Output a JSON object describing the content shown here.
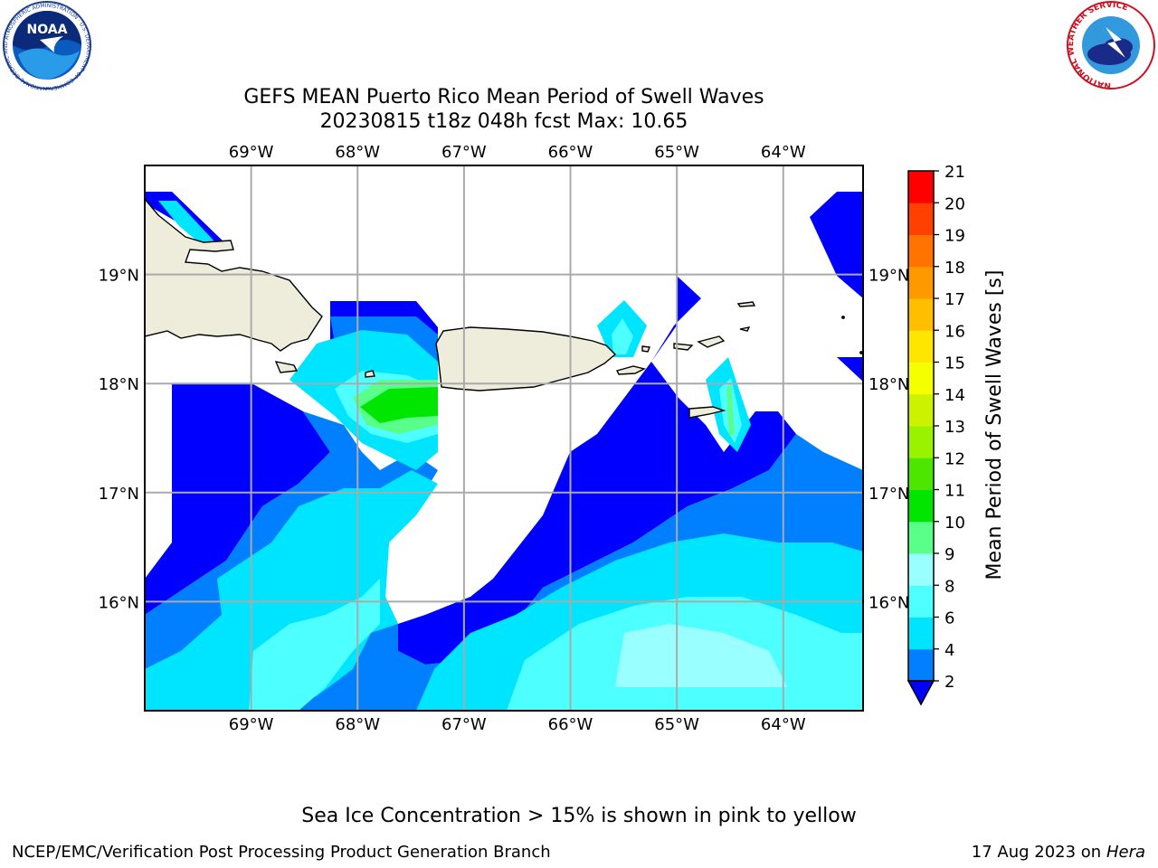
{
  "title_line1": "GEFS MEAN Puerto Rico Mean Period of Swell Waves",
  "title_line2": "20230815 t18z 048h fcst   Max: 10.65",
  "logos": {
    "noaa_text": "NOAA",
    "noaa_ring": "NATIONAL OCEANIC AND ATMOSPHERIC ADMINISTRATION · U.S. DEPARTMENT OF COMMERCE",
    "nws_ring": "NATIONAL WEATHER SERVICE"
  },
  "axes": {
    "lon_labels": [
      "69°W",
      "68°W",
      "67°W",
      "66°W",
      "65°W",
      "64°W"
    ],
    "lon_values": [
      -69,
      -68,
      -67,
      -66,
      -65,
      -64
    ],
    "lat_labels": [
      "19°N",
      "18°N",
      "17°N",
      "16°N"
    ],
    "lat_values": [
      19,
      18,
      17,
      16
    ],
    "lon_range": [
      -70.0,
      -63.25
    ],
    "lat_range": [
      15.0,
      20.0
    ],
    "grid": true
  },
  "colorbar": {
    "label": "Mean Period of Swell Waves [s]",
    "ticks": [
      "2",
      "4",
      "6",
      "8",
      "9",
      "10",
      "11",
      "12",
      "13",
      "14",
      "15",
      "16",
      "17",
      "18",
      "19",
      "20",
      "21"
    ],
    "levels": [
      2,
      4,
      6,
      8,
      9,
      10,
      11,
      12,
      13,
      14,
      15,
      16,
      17,
      18,
      19,
      20,
      21
    ],
    "colors": [
      "#0000ff",
      "#0080ff",
      "#00e5ff",
      "#4dffff",
      "#99ffff",
      "#59ff88",
      "#00e600",
      "#4de600",
      "#99f200",
      "#ccf200",
      "#f5ff00",
      "#ffe600",
      "#ffbf00",
      "#ff9900",
      "#ff7300",
      "#ff4000",
      "#ff0000"
    ],
    "under_color": "#0000ff"
  },
  "land_color": "#eeecdb",
  "footer": {
    "note": "Sea Ice Concentration > 15% is shown in pink to yellow",
    "left": "NCEP/EMC/Verification Post Processing Product Generation Branch",
    "right_date": "17 Aug 2023 on",
    "right_host": "Hera"
  }
}
